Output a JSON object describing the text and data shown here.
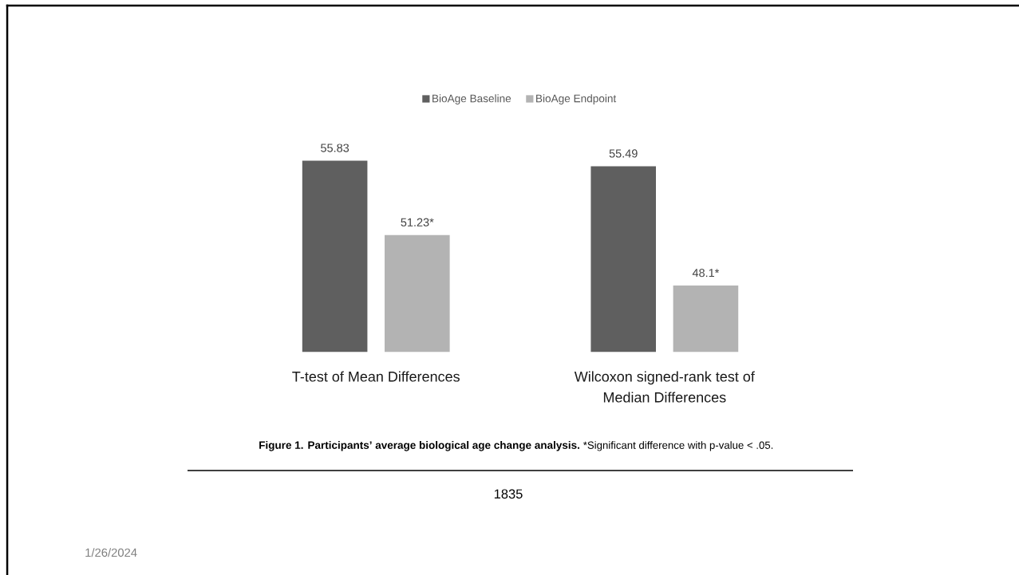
{
  "chart_data": {
    "type": "bar",
    "categories": [
      "T-test of Mean Differences",
      "Wilcoxon signed-rank test of Median Differences"
    ],
    "series": [
      {
        "name": "BioAge Baseline",
        "color": "#5f5f5f",
        "values": [
          55.83,
          55.49
        ],
        "value_labels": [
          "55.83",
          "55.49"
        ]
      },
      {
        "name": "BioAge Endpoint",
        "color": "#b3b3b3",
        "values": [
          51.23,
          48.1
        ],
        "value_labels": [
          "51.23*",
          "48.1*"
        ]
      }
    ],
    "ylim": [
      44,
      55.83
    ],
    "tick_labels": "x",
    "legend": "top",
    "annotations": [
      "Figure 1. Participants’ average biological age change analysis.",
      "*Significant difference with p-value < .05.",
      "1835",
      "1/26/2024"
    ]
  }
}
